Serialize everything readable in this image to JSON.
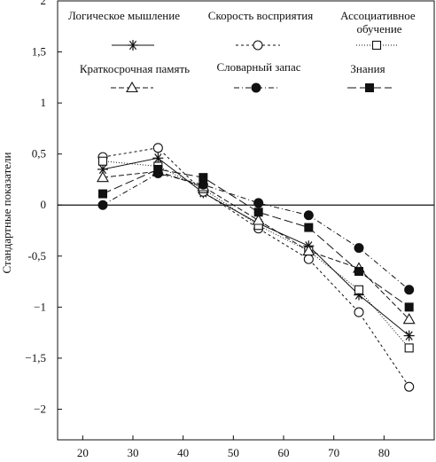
{
  "chart_data": {
    "type": "line",
    "ylabel": "Стандартные показатели",
    "xlabel": "",
    "xlim": [
      15,
      90
    ],
    "ylim": [
      -2.3,
      2
    ],
    "x_ticks": [
      "20",
      "30",
      "40",
      "50",
      "60",
      "70",
      "80"
    ],
    "y_ticks": [
      "2",
      "1,5",
      "1",
      "0,5",
      "0",
      "-0,5",
      "−1",
      "−1,5",
      "−2"
    ],
    "x": [
      24,
      35,
      44,
      55,
      65,
      75,
      85
    ],
    "series": [
      {
        "name": "Логическое мышление",
        "marker": "star",
        "dash": "",
        "values": [
          0.35,
          0.46,
          0.12,
          -0.18,
          -0.4,
          -0.88,
          -1.28
        ]
      },
      {
        "name": "Скорость восприятия",
        "marker": "circle-open",
        "dash": "3,3",
        "values": [
          0.47,
          0.56,
          0.13,
          -0.23,
          -0.53,
          -1.05,
          -1.78
        ]
      },
      {
        "name": "Ассоциативное обучение",
        "marker": "square-open",
        "dash": "1,2",
        "values": [
          0.43,
          0.38,
          0.16,
          -0.2,
          -0.45,
          -0.83,
          -1.4
        ]
      },
      {
        "name": "Краткосрочная память",
        "marker": "triangle-open",
        "dash": "6,3",
        "values": [
          0.27,
          0.33,
          0.18,
          -0.15,
          -0.45,
          -0.62,
          -1.12
        ]
      },
      {
        "name": "Словарный запас",
        "marker": "circle-filled",
        "dash": "6,3,1,3",
        "values": [
          0.0,
          0.31,
          0.2,
          0.02,
          -0.1,
          -0.42,
          -0.83
        ]
      },
      {
        "name": "Знания",
        "marker": "square-filled",
        "dash": "10,4",
        "values": [
          0.11,
          0.35,
          0.27,
          -0.07,
          -0.22,
          -0.65,
          -1.0
        ]
      }
    ],
    "legend_position": "top",
    "grid": false
  }
}
